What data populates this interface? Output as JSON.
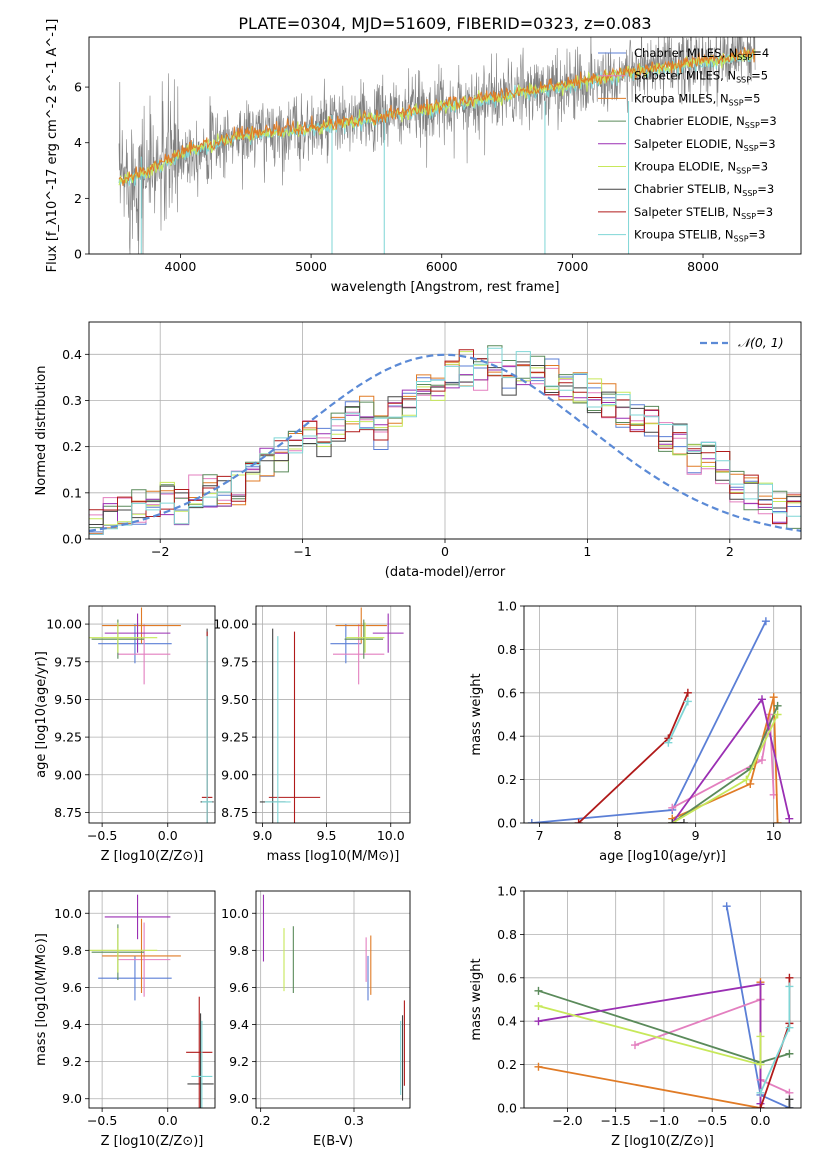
{
  "figure": {
    "title": "PLATE=0304, MJD=51609, FIBERID=0323, z=0.083"
  },
  "colors": {
    "chabrier_miles": "#5b7fd6",
    "salpeter_miles": "#e37fbf",
    "kroupa_miles": "#e07b26",
    "chabrier_elodie": "#5a8a5a",
    "salpeter_elodie": "#9a2fb3",
    "kroupa_elodie": "#c7e85a",
    "chabrier_stelib": "#444444",
    "salpeter_stelib": "#b01a1a",
    "kroupa_stelib": "#7fd6d6",
    "data": "#808080",
    "normal": "#5b8ad6"
  },
  "chart_data": [
    {
      "id": "spectrum",
      "type": "line",
      "title": "PLATE=0304, MJD=51609, FIBERID=0323, z=0.083",
      "xlabel": "wavelength [Angstrom, rest frame]",
      "ylabel": "Flux [f_λ10^-17 erg cm^-2 s^-1 A^-1]",
      "xlim": [
        3300,
        8750
      ],
      "ylim": [
        0,
        7.8
      ],
      "xticks": [
        4000,
        5000,
        6000,
        7000,
        8000
      ],
      "yticks": [
        0,
        2,
        4,
        6
      ],
      "grid": false,
      "legend_position": "upper-right",
      "legend": [
        {
          "label": "Chabrier MILES, N_SSP=4",
          "text": "Chabrier MILES, N",
          "sub": "SSP",
          "suffix": "=4",
          "color_key": "chabrier_miles"
        },
        {
          "label": "Salpeter MILES, N_SSP=5",
          "text": "Salpeter MILES, N",
          "sub": "SSP",
          "suffix": "=5",
          "color_key": "salpeter_miles"
        },
        {
          "label": "Kroupa MILES, N_SSP=5",
          "text": "Kroupa MILES, N",
          "sub": "SSP",
          "suffix": "=5",
          "color_key": "kroupa_miles"
        },
        {
          "label": "Chabrier ELODIE, N_SSP=3",
          "text": "Chabrier ELODIE, N",
          "sub": "SSP",
          "suffix": "=3",
          "color_key": "chabrier_elodie"
        },
        {
          "label": "Salpeter ELODIE, N_SSP=3",
          "text": "Salpeter ELODIE, N",
          "sub": "SSP",
          "suffix": "=3",
          "color_key": "salpeter_elodie"
        },
        {
          "label": "Kroupa ELODIE, N_SSP=3",
          "text": "Kroupa ELODIE, N",
          "sub": "SSP",
          "suffix": "=3",
          "color_key": "kroupa_elodie"
        },
        {
          "label": "Chabrier STELIB, N_SSP=3",
          "text": "Chabrier STELIB, N",
          "sub": "SSP",
          "suffix": "=3",
          "color_key": "chabrier_stelib"
        },
        {
          "label": "Salpeter STELIB, N_SSP=3",
          "text": "Salpeter STELIB, N",
          "sub": "SSP",
          "suffix": "=3",
          "color_key": "salpeter_stelib"
        },
        {
          "label": "Kroupa STELIB, N_SSP=3",
          "text": "Kroupa STELIB, N",
          "sub": "SSP",
          "suffix": "=3",
          "color_key": "kroupa_stelib"
        }
      ],
      "continuum_model": [
        [
          3530,
          2.6
        ],
        [
          3700,
          2.9
        ],
        [
          3900,
          3.3
        ],
        [
          4000,
          3.6
        ],
        [
          4200,
          3.9
        ],
        [
          4500,
          4.3
        ],
        [
          5000,
          4.5
        ],
        [
          5500,
          4.9
        ],
        [
          6000,
          5.3
        ],
        [
          6500,
          5.7
        ],
        [
          7000,
          6.1
        ],
        [
          7400,
          6.5
        ],
        [
          8000,
          6.9
        ],
        [
          8400,
          7.2
        ]
      ],
      "data_noise_sigma": 0.9,
      "spikes": [
        [
          5160,
          0,
          5
        ],
        [
          5560,
          0,
          5.2
        ],
        [
          6790,
          0,
          5.5
        ],
        [
          7430,
          0,
          5.5
        ],
        [
          3700,
          0,
          3.5
        ]
      ]
    },
    {
      "id": "residuals",
      "type": "histogram",
      "xlabel": "(data-model)/error",
      "ylabel": "Normed distribution",
      "xlim": [
        -2.5,
        2.5
      ],
      "ylim": [
        0,
        0.47
      ],
      "xticks": [
        -2,
        -1,
        0,
        1,
        2
      ],
      "yticks": [
        0.0,
        0.1,
        0.2,
        0.3,
        0.4
      ],
      "grid": true,
      "legend_position": "upper-right",
      "legend": {
        "label": "𝒩(0, 1)"
      },
      "bin_width": 0.1,
      "bin_start": -2.5,
      "reference_heights": [
        0.04,
        0.05,
        0.06,
        0.07,
        0.08,
        0.09,
        0.07,
        0.1,
        0.1,
        0.11,
        0.11,
        0.13,
        0.16,
        0.18,
        0.22,
        0.23,
        0.2,
        0.25,
        0.26,
        0.27,
        0.23,
        0.28,
        0.3,
        0.33,
        0.34,
        0.36,
        0.37,
        0.36,
        0.38,
        0.35,
        0.37,
        0.36,
        0.35,
        0.34,
        0.33,
        0.31,
        0.3,
        0.28,
        0.27,
        0.25,
        0.22,
        0.21,
        0.18,
        0.18,
        0.15,
        0.12,
        0.1,
        0.09,
        0.07,
        0.06
      ]
    },
    {
      "id": "age_vs_Z",
      "type": "scatter",
      "xlabel": "Z [log10(Z/Z⊙)]",
      "ylabel": "age  [log10(age/yr)]",
      "xlim": [
        -0.6,
        0.36
      ],
      "ylim": [
        8.68,
        10.12
      ],
      "xticks": [
        -0.5,
        0.0
      ],
      "yticks": [
        8.75,
        9.0,
        9.25,
        9.5,
        9.75,
        10.0
      ],
      "grid": true,
      "points": [
        {
          "x": -0.25,
          "y": 9.87,
          "xerr": 0.28,
          "yerr": 0.13,
          "color_key": "chabrier_miles"
        },
        {
          "x": -0.18,
          "y": 9.8,
          "xerr": 0.2,
          "yerr": 0.2,
          "color_key": "salpeter_miles"
        },
        {
          "x": -0.2,
          "y": 9.99,
          "xerr": 0.3,
          "yerr": 0.12,
          "color_key": "kroupa_miles"
        },
        {
          "x": -0.38,
          "y": 9.9,
          "xerr": 0.2,
          "yerr": 0.13,
          "color_key": "chabrier_elodie"
        },
        {
          "x": -0.23,
          "y": 9.94,
          "xerr": 0.25,
          "yerr": 0.13,
          "color_key": "salpeter_elodie"
        },
        {
          "x": -0.38,
          "y": 9.91,
          "xerr": 0.3,
          "yerr": 0.1,
          "color_key": "kroupa_elodie"
        },
        {
          "x": 0.3,
          "y": 8.82,
          "xerr": 0.05,
          "yerr": 1.15,
          "color_key": "chabrier_stelib"
        },
        {
          "x": 0.3,
          "y": 8.85,
          "xerr": 0.04,
          "yerr": 1.1,
          "color_key": "salpeter_stelib"
        },
        {
          "x": 0.3,
          "y": 8.82,
          "xerr": 0.04,
          "yerr": 1.1,
          "color_key": "kroupa_stelib"
        }
      ]
    },
    {
      "id": "age_vs_mass",
      "type": "scatter",
      "xlabel": "mass [log10(M/M⊙)]",
      "ylabel": "",
      "xlim": [
        8.95,
        10.15
      ],
      "ylim": [
        8.68,
        10.12
      ],
      "xticks": [
        9.0,
        9.5,
        10.0
      ],
      "yticks": [
        8.75,
        9.0,
        9.25,
        9.5,
        9.75,
        10.0
      ],
      "grid": true,
      "points": [
        {
          "x": 9.65,
          "y": 9.87,
          "xerr": 0.12,
          "yerr": 0.13,
          "color_key": "chabrier_miles"
        },
        {
          "x": 9.75,
          "y": 9.8,
          "xerr": 0.2,
          "yerr": 0.2,
          "color_key": "salpeter_miles"
        },
        {
          "x": 9.77,
          "y": 9.99,
          "xerr": 0.2,
          "yerr": 0.12,
          "color_key": "kroupa_miles"
        },
        {
          "x": 9.79,
          "y": 9.9,
          "xerr": 0.15,
          "yerr": 0.13,
          "color_key": "chabrier_elodie"
        },
        {
          "x": 9.98,
          "y": 9.94,
          "xerr": 0.12,
          "yerr": 0.13,
          "color_key": "salpeter_elodie"
        },
        {
          "x": 9.8,
          "y": 9.91,
          "xerr": 0.15,
          "yerr": 0.1,
          "color_key": "kroupa_elodie"
        },
        {
          "x": 9.08,
          "y": 8.82,
          "xerr": 0.1,
          "yerr": 1.15,
          "color_key": "chabrier_stelib"
        },
        {
          "x": 9.25,
          "y": 8.85,
          "xerr": 0.2,
          "yerr": 1.1,
          "color_key": "salpeter_stelib"
        },
        {
          "x": 9.12,
          "y": 8.82,
          "xerr": 0.1,
          "yerr": 1.1,
          "color_key": "kroupa_stelib"
        }
      ]
    },
    {
      "id": "mass_weight_vs_age",
      "type": "line",
      "xlabel": "age  [log10(age/yr)]",
      "ylabel": "mass weight",
      "xlim": [
        6.8,
        10.35
      ],
      "ylim": [
        0,
        1.0
      ],
      "xticks": [
        7,
        8,
        9,
        10
      ],
      "yticks": [
        0.0,
        0.2,
        0.4,
        0.6,
        0.8,
        1.0
      ],
      "grid": true,
      "series": [
        {
          "color_key": "chabrier_miles",
          "x": [
            6.9,
            8.7,
            9.9
          ],
          "y": [
            0.0,
            0.06,
            0.93
          ]
        },
        {
          "color_key": "salpeter_miles",
          "x": [
            8.7,
            9.85,
            9.95,
            10.0
          ],
          "y": [
            0.07,
            0.29,
            0.5,
            0.13
          ]
        },
        {
          "color_key": "kroupa_miles",
          "x": [
            8.7,
            9.7,
            10.0,
            10.05
          ],
          "y": [
            0.02,
            0.18,
            0.58,
            0.0
          ]
        },
        {
          "color_key": "chabrier_elodie",
          "x": [
            8.7,
            9.7,
            10.05
          ],
          "y": [
            0.0,
            0.25,
            0.54
          ]
        },
        {
          "color_key": "salpeter_elodie",
          "x": [
            8.7,
            9.85,
            10.2
          ],
          "y": [
            0.0,
            0.57,
            0.02
          ]
        },
        {
          "color_key": "kroupa_elodie",
          "x": [
            8.7,
            9.65,
            10.05
          ],
          "y": [
            0.0,
            0.2,
            0.5
          ]
        },
        {
          "color_key": "chabrier_stelib",
          "x": [
            8.7,
            8.85
          ],
          "y": [
            0.0,
            0.0
          ]
        },
        {
          "color_key": "salpeter_stelib",
          "x": [
            7.5,
            8.65,
            8.9
          ],
          "y": [
            0.0,
            0.39,
            0.6
          ]
        },
        {
          "color_key": "kroupa_stelib",
          "x": [
            8.65,
            8.9
          ],
          "y": [
            0.37,
            0.56
          ]
        }
      ]
    },
    {
      "id": "mass_vs_Z",
      "type": "scatter",
      "xlabel": "Z [log10(Z/Z⊙)]",
      "ylabel": "mass [log10(M/M⊙)]",
      "xlim": [
        -0.6,
        0.36
      ],
      "ylim": [
        8.95,
        10.12
      ],
      "xticks": [
        -0.5,
        0.0
      ],
      "yticks": [
        9.0,
        9.2,
        9.4,
        9.6,
        9.8,
        10.0
      ],
      "grid": true,
      "points": [
        {
          "x": -0.25,
          "y": 9.65,
          "xerr": 0.28,
          "yerr": 0.12,
          "color_key": "chabrier_miles"
        },
        {
          "x": -0.18,
          "y": 9.75,
          "xerr": 0.2,
          "yerr": 0.2,
          "color_key": "salpeter_miles"
        },
        {
          "x": -0.2,
          "y": 9.77,
          "xerr": 0.3,
          "yerr": 0.2,
          "color_key": "kroupa_miles"
        },
        {
          "x": -0.38,
          "y": 9.79,
          "xerr": 0.2,
          "yerr": 0.15,
          "color_key": "chabrier_elodie"
        },
        {
          "x": -0.23,
          "y": 9.98,
          "xerr": 0.25,
          "yerr": 0.12,
          "color_key": "salpeter_elodie"
        },
        {
          "x": -0.38,
          "y": 9.8,
          "xerr": 0.3,
          "yerr": 0.12,
          "color_key": "kroupa_elodie"
        },
        {
          "x": 0.25,
          "y": 9.08,
          "xerr": 0.1,
          "yerr": 0.38,
          "color_key": "chabrier_stelib"
        },
        {
          "x": 0.24,
          "y": 9.25,
          "xerr": 0.1,
          "yerr": 0.3,
          "color_key": "salpeter_stelib"
        },
        {
          "x": 0.26,
          "y": 9.12,
          "xerr": 0.08,
          "yerr": 0.3,
          "color_key": "kroupa_stelib"
        }
      ]
    },
    {
      "id": "mass_vs_ebv",
      "type": "scatter",
      "xlabel": "E(B-V)",
      "ylabel": "",
      "xlim": [
        0.195,
        0.36
      ],
      "ylim": [
        8.95,
        10.12
      ],
      "xticks": [
        0.2,
        0.3
      ],
      "yticks": [
        9.0,
        9.2,
        9.4,
        9.6,
        9.8,
        10.0
      ],
      "grid": true,
      "points": [
        {
          "x": 0.315,
          "y": 9.65,
          "yerr": 0.12,
          "color_key": "chabrier_miles"
        },
        {
          "x": 0.313,
          "y": 9.75,
          "yerr": 0.12,
          "color_key": "salpeter_miles"
        },
        {
          "x": 0.318,
          "y": 9.72,
          "yerr": 0.16,
          "color_key": "kroupa_miles"
        },
        {
          "x": 0.235,
          "y": 9.75,
          "yerr": 0.18,
          "color_key": "chabrier_elodie"
        },
        {
          "x": 0.203,
          "y": 9.92,
          "yerr": 0.18,
          "color_key": "salpeter_elodie"
        },
        {
          "x": 0.225,
          "y": 9.75,
          "yerr": 0.17,
          "color_key": "kroupa_elodie"
        },
        {
          "x": 0.352,
          "y": 9.22,
          "yerr": 0.23,
          "color_key": "chabrier_stelib"
        },
        {
          "x": 0.354,
          "y": 9.3,
          "yerr": 0.23,
          "color_key": "salpeter_stelib"
        },
        {
          "x": 0.35,
          "y": 9.22,
          "yerr": 0.2,
          "color_key": "kroupa_stelib"
        }
      ]
    },
    {
      "id": "mass_weight_vs_Z",
      "type": "line",
      "xlabel": "Z [log10(Z/Z⊙)]",
      "ylabel": "mass weight",
      "xlim": [
        -2.45,
        0.42
      ],
      "ylim": [
        0,
        1.0
      ],
      "xticks": [
        -2.0,
        -1.5,
        -1.0,
        -0.5,
        0.0
      ],
      "yticks": [
        0.0,
        0.2,
        0.4,
        0.6,
        0.8,
        1.0
      ],
      "grid": true,
      "series": [
        {
          "color_key": "chabrier_miles",
          "x": [
            -0.35,
            0.0,
            0.3
          ],
          "y": [
            0.93,
            0.06,
            0.0
          ]
        },
        {
          "color_key": "salpeter_miles",
          "x": [
            -1.3,
            0.0,
            0.0,
            0.3
          ],
          "y": [
            0.29,
            0.5,
            0.13,
            0.07
          ]
        },
        {
          "color_key": "kroupa_miles",
          "x": [
            -2.3,
            0.0,
            0.0
          ],
          "y": [
            0.19,
            0.0,
            0.58
          ]
        },
        {
          "color_key": "chabrier_elodie",
          "x": [
            -2.3,
            0.0,
            0.3
          ],
          "y": [
            0.54,
            0.21,
            0.25
          ]
        },
        {
          "color_key": "salpeter_elodie",
          "x": [
            -2.3,
            0.0,
            0.0
          ],
          "y": [
            0.4,
            0.57,
            0.02
          ]
        },
        {
          "color_key": "kroupa_elodie",
          "x": [
            -2.3,
            0.0,
            0.0
          ],
          "y": [
            0.47,
            0.2,
            0.33
          ]
        },
        {
          "color_key": "chabrier_stelib",
          "x": [
            0.3,
            0.3
          ],
          "y": [
            0.0,
            0.04
          ]
        },
        {
          "color_key": "salpeter_stelib",
          "x": [
            0.0,
            0.3,
            0.3
          ],
          "y": [
            0.0,
            0.39,
            0.6
          ]
        },
        {
          "color_key": "kroupa_stelib",
          "x": [
            0.0,
            0.3,
            0.3
          ],
          "y": [
            0.07,
            0.37,
            0.56
          ]
        }
      ]
    }
  ]
}
